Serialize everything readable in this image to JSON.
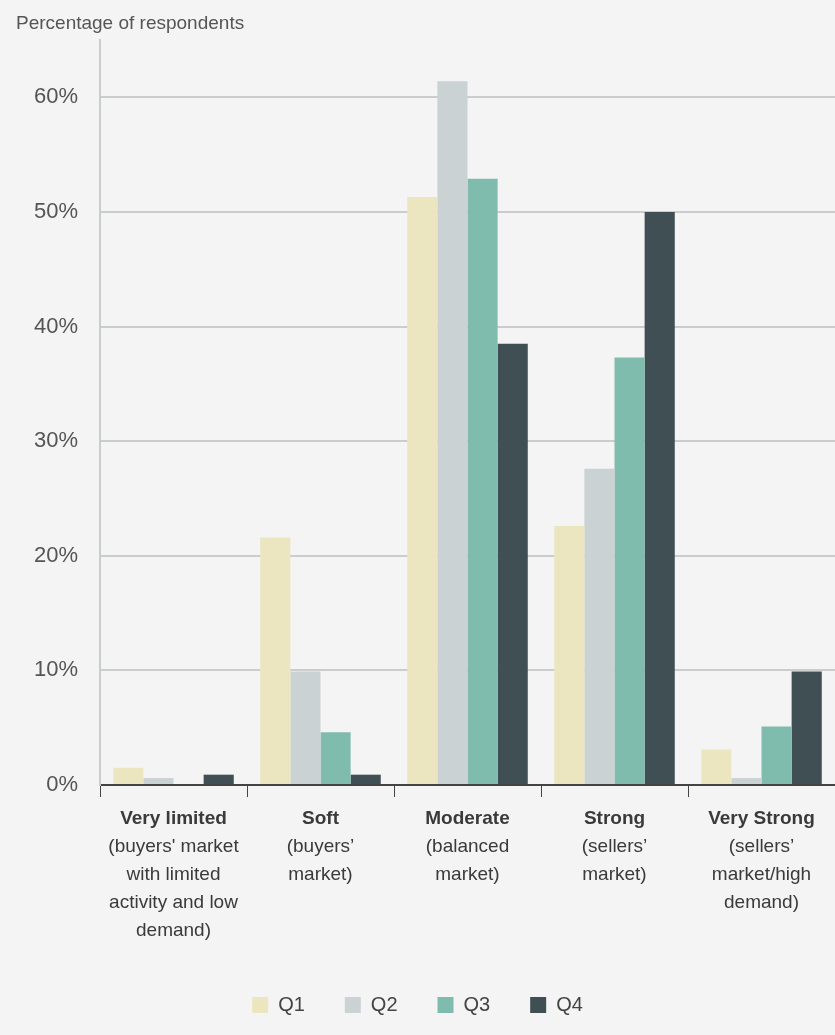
{
  "chart_data": {
    "type": "bar",
    "ylabel": "Percentage of respondents",
    "categories": [
      "Very limited\n(buyers' market\nwith limited\nactivity and low\ndemand)",
      "Soft\n(buyers’\nmarket)",
      "Moderate\n(balanced\nmarket)",
      "Strong\n(sellers’\nmarket)",
      "Very Strong\n(sellers’\nmarket/high\ndemand)"
    ],
    "series": [
      {
        "name": "Q1",
        "color": "#ebe6c0",
        "values": [
          1.5,
          21.6,
          51.3,
          22.6,
          3.1
        ]
      },
      {
        "name": "Q2",
        "color": "#cbd2d3",
        "values": [
          0.6,
          9.9,
          61.4,
          27.6,
          0.6
        ]
      },
      {
        "name": "Q3",
        "color": "#80bcae",
        "values": [
          0,
          4.6,
          52.9,
          37.3,
          5.1
        ]
      },
      {
        "name": "Q4",
        "color": "#3f4f53",
        "values": [
          0.9,
          0.9,
          38.5,
          50.0,
          9.9
        ]
      }
    ],
    "ylim": [
      0,
      65
    ],
    "yticks": [
      {
        "value": 0,
        "label": "0%"
      },
      {
        "value": 10,
        "label": "10%"
      },
      {
        "value": 20,
        "label": "20%"
      },
      {
        "value": 30,
        "label": "30%"
      },
      {
        "value": 40,
        "label": "40%"
      },
      {
        "value": 50,
        "label": "50%"
      },
      {
        "value": 60,
        "label": "60%"
      }
    ],
    "grid": "y",
    "legend": "bottom"
  }
}
